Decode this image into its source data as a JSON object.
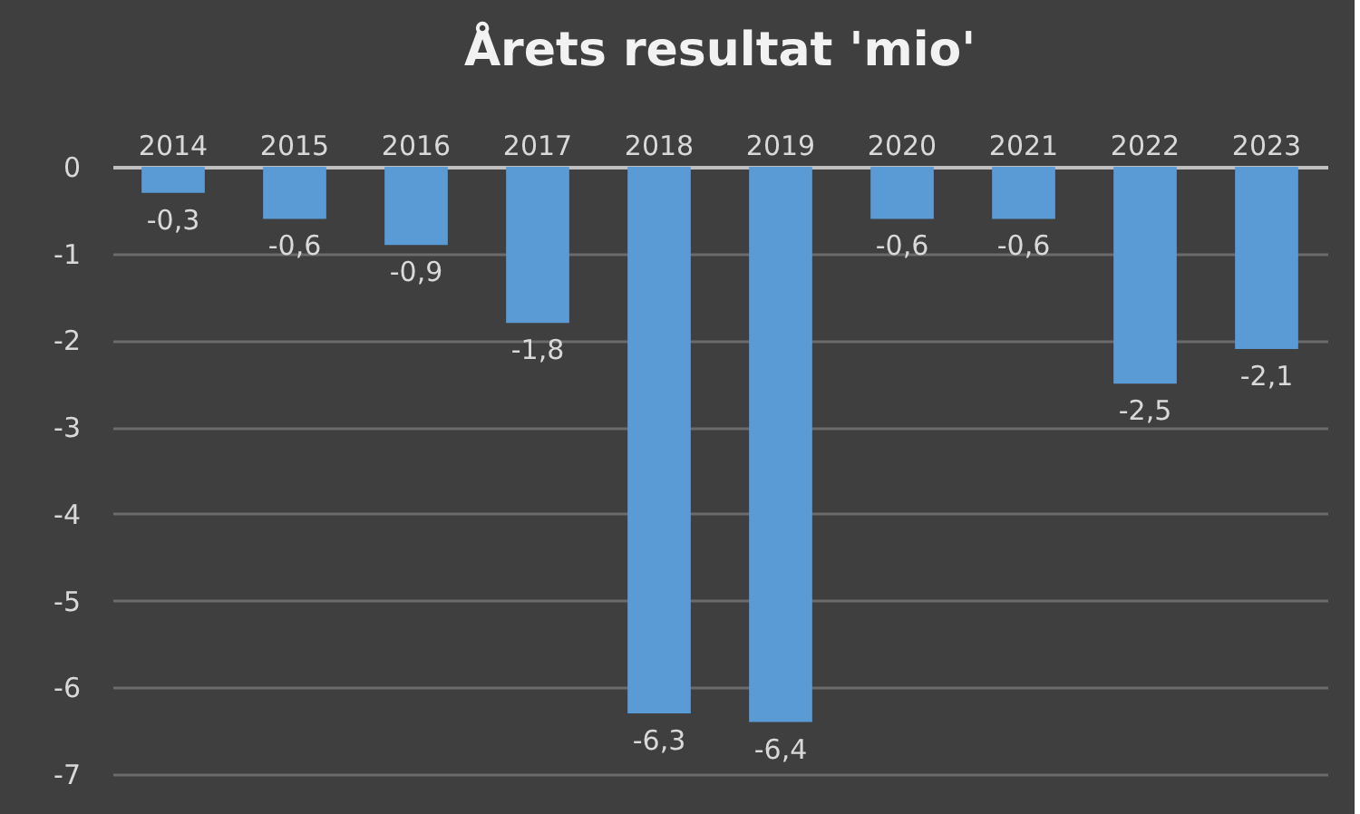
{
  "chart_data": {
    "type": "bar",
    "title": "Årets resultat 'mio'",
    "categories": [
      "2014",
      "2015",
      "2016",
      "2017",
      "2018",
      "2019",
      "2020",
      "2021",
      "2022",
      "2023"
    ],
    "values": [
      -0.3,
      -0.6,
      -0.9,
      -1.8,
      -6.3,
      -6.4,
      -0.6,
      -0.6,
      -2.5,
      -2.1
    ],
    "value_labels": [
      "-0,3",
      "-0,6",
      "-0,9",
      "-1,8",
      "-6,3",
      "-6,4",
      "-0,6",
      "-0,6",
      "-2,5",
      "-2,1"
    ],
    "color": "#5b9bd5",
    "ylim": [
      -7,
      0
    ],
    "yticks": [
      0,
      -1,
      -2,
      -3,
      -4,
      -5,
      -6,
      -7
    ],
    "grid": "y",
    "legend": false
  }
}
